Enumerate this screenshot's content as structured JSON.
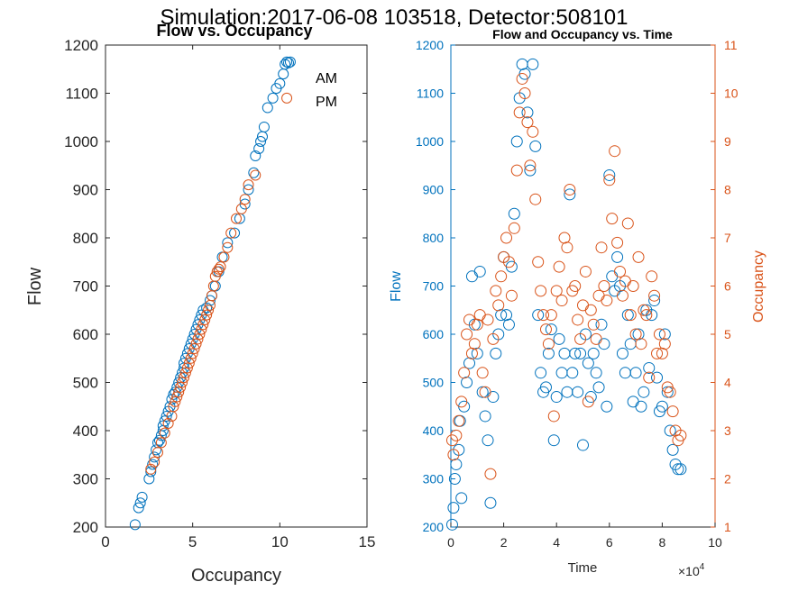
{
  "figure_title": "Simulation:2017-06-08 103518, Detector:508101",
  "colors": {
    "blue": "#0072BD",
    "orange": "#D95319",
    "axis": "#262626"
  },
  "chart_data": [
    {
      "type": "scatter",
      "title": "Flow vs. Occupancy",
      "xlabel": "Occupancy",
      "ylabel": "Flow",
      "xlim": [
        0,
        15
      ],
      "ylim": [
        200,
        1200
      ],
      "xticks": [
        0,
        5,
        10,
        15
      ],
      "yticks": [
        200,
        300,
        400,
        500,
        600,
        700,
        800,
        900,
        1000,
        1100,
        1200
      ],
      "legend": {
        "placement": "top-right",
        "entries": [
          "AM",
          "PM"
        ]
      },
      "grid": false,
      "series": [
        {
          "name": "AM",
          "color": "#0072BD",
          "x": [
            1.7,
            1.9,
            2.0,
            2.1,
            2.5,
            2.6,
            2.7,
            2.8,
            2.9,
            3.0,
            3.1,
            3.2,
            3.3,
            3.3,
            3.4,
            3.5,
            3.6,
            3.7,
            3.8,
            3.9,
            4.0,
            4.1,
            4.2,
            4.3,
            4.4,
            4.5,
            4.5,
            4.6,
            4.7,
            4.8,
            4.9,
            5.0,
            5.1,
            5.2,
            5.3,
            5.4,
            5.5,
            5.6,
            5.8,
            6.0,
            6.1,
            6.3,
            6.5,
            6.7,
            7.0,
            7.4,
            7.7,
            8.0,
            8.2,
            8.5,
            8.6,
            8.8,
            8.9,
            9.0,
            9.1,
            9.3,
            9.6,
            9.8,
            10.0,
            10.2,
            10.3,
            10.4,
            10.5,
            10.6
          ],
          "y": [
            205,
            240,
            250,
            262,
            300,
            315,
            330,
            345,
            360,
            375,
            380,
            390,
            400,
            410,
            420,
            430,
            440,
            450,
            465,
            475,
            480,
            490,
            500,
            510,
            520,
            530,
            540,
            550,
            560,
            570,
            580,
            590,
            600,
            610,
            620,
            630,
            640,
            650,
            655,
            670,
            680,
            700,
            730,
            760,
            790,
            810,
            840,
            870,
            900,
            935,
            970,
            985,
            1000,
            1010,
            1030,
            1070,
            1090,
            1110,
            1120,
            1140,
            1160,
            1165,
            1163,
            1165
          ]
        },
        {
          "name": "PM",
          "color": "#D95319",
          "x": [
            2.6,
            2.8,
            3.0,
            3.2,
            3.4,
            3.6,
            3.8,
            3.9,
            4.0,
            4.1,
            4.2,
            4.3,
            4.4,
            4.5,
            4.6,
            4.7,
            4.8,
            4.9,
            5.0,
            5.1,
            5.2,
            5.3,
            5.4,
            5.5,
            5.6,
            5.7,
            5.8,
            5.9,
            6.0,
            6.1,
            6.2,
            6.3,
            6.4,
            6.5,
            6.6,
            6.8,
            7.0,
            7.2,
            7.5,
            7.8,
            8.0,
            8.2,
            8.6,
            10.4
          ],
          "y": [
            320,
            335,
            355,
            375,
            395,
            415,
            430,
            450,
            460,
            470,
            480,
            490,
            500,
            510,
            520,
            530,
            540,
            550,
            560,
            570,
            580,
            590,
            600,
            610,
            620,
            630,
            640,
            650,
            660,
            680,
            700,
            720,
            730,
            735,
            740,
            760,
            780,
            810,
            840,
            860,
            880,
            910,
            930,
            1090
          ]
        }
      ]
    },
    {
      "type": "scatter",
      "title": "Flow and Occupancy vs. Time",
      "xlabel": "Time",
      "x_exponent": "×10^4",
      "x_exponent_base": "×10",
      "x_exponent_power": "4",
      "ylabel_left": "Flow",
      "ylabel_right": "Occupancy",
      "xlim": [
        0,
        10
      ],
      "ylim_left": [
        200,
        1200
      ],
      "ylim_right": [
        1,
        11
      ],
      "xticks": [
        0,
        2,
        4,
        6,
        8,
        10
      ],
      "yticks_left": [
        200,
        300,
        400,
        500,
        600,
        700,
        800,
        900,
        1000,
        1100,
        1200
      ],
      "yticks_right": [
        1,
        2,
        3,
        4,
        5,
        6,
        7,
        8,
        9,
        10,
        11
      ],
      "grid": false,
      "series": [
        {
          "name": "Flow",
          "axis": "left",
          "color": "#0072BD",
          "x": [
            0.05,
            0.1,
            0.15,
            0.2,
            0.3,
            0.35,
            0.4,
            0.5,
            0.6,
            0.7,
            0.8,
            0.9,
            1.0,
            1.1,
            1.2,
            1.3,
            1.4,
            1.5,
            1.6,
            1.7,
            1.8,
            1.9,
            2.0,
            2.1,
            2.2,
            2.3,
            2.4,
            2.5,
            2.6,
            2.7,
            2.8,
            2.9,
            3.0,
            3.1,
            3.2,
            3.3,
            3.4,
            3.5,
            3.6,
            3.7,
            3.8,
            3.9,
            4.0,
            4.1,
            4.2,
            4.3,
            4.4,
            4.5,
            4.6,
            4.7,
            4.8,
            4.9,
            5.0,
            5.1,
            5.2,
            5.3,
            5.4,
            5.5,
            5.6,
            5.7,
            5.8,
            5.9,
            6.0,
            6.1,
            6.2,
            6.3,
            6.4,
            6.5,
            6.6,
            6.7,
            6.8,
            6.9,
            7.0,
            7.1,
            7.2,
            7.3,
            7.4,
            7.5,
            7.6,
            7.7,
            7.8,
            7.9,
            8.0,
            8.1,
            8.2,
            8.3,
            8.4,
            8.5,
            8.6,
            8.7
          ],
          "y": [
            205,
            240,
            300,
            330,
            360,
            420,
            260,
            450,
            500,
            540,
            720,
            620,
            560,
            730,
            480,
            430,
            380,
            250,
            470,
            560,
            600,
            640,
            760,
            640,
            620,
            740,
            850,
            1000,
            1090,
            1160,
            1140,
            1060,
            940,
            1160,
            990,
            640,
            520,
            480,
            490,
            560,
            610,
            380,
            470,
            590,
            520,
            560,
            480,
            890,
            520,
            560,
            480,
            560,
            370,
            600,
            540,
            470,
            560,
            520,
            490,
            620,
            580,
            450,
            930,
            720,
            690,
            760,
            700,
            560,
            520,
            640,
            580,
            460,
            520,
            600,
            450,
            480,
            650,
            530,
            640,
            670,
            510,
            440,
            450,
            600,
            480,
            400,
            360,
            330,
            320,
            320
          ]
        },
        {
          "name": "Occupancy",
          "axis": "right",
          "color": "#D95319",
          "x": [
            0.05,
            0.1,
            0.2,
            0.3,
            0.4,
            0.5,
            0.6,
            0.7,
            0.8,
            0.9,
            1.0,
            1.1,
            1.2,
            1.3,
            1.4,
            1.5,
            1.6,
            1.7,
            1.8,
            1.9,
            2.0,
            2.1,
            2.2,
            2.3,
            2.4,
            2.5,
            2.6,
            2.7,
            2.8,
            2.9,
            3.0,
            3.1,
            3.2,
            3.3,
            3.4,
            3.5,
            3.6,
            3.7,
            3.8,
            3.9,
            4.0,
            4.1,
            4.2,
            4.3,
            4.4,
            4.5,
            4.6,
            4.7,
            4.8,
            4.9,
            5.0,
            5.1,
            5.2,
            5.3,
            5.4,
            5.5,
            5.6,
            5.7,
            5.8,
            5.9,
            6.0,
            6.1,
            6.2,
            6.3,
            6.4,
            6.5,
            6.6,
            6.7,
            6.8,
            6.9,
            7.0,
            7.1,
            7.2,
            7.3,
            7.4,
            7.5,
            7.6,
            7.7,
            7.8,
            7.9,
            8.0,
            8.1,
            8.2,
            8.3,
            8.4,
            8.5,
            8.6,
            8.7
          ],
          "y": [
            2.8,
            2.5,
            2.9,
            3.2,
            3.6,
            4.2,
            5.0,
            5.3,
            4.6,
            4.8,
            5.2,
            5.4,
            4.2,
            3.8,
            5.3,
            2.1,
            4.9,
            5.9,
            5.6,
            6.2,
            6.6,
            7.0,
            6.5,
            5.8,
            7.2,
            8.4,
            9.6,
            10.3,
            10.0,
            9.4,
            8.5,
            9.2,
            7.8,
            6.5,
            5.9,
            5.4,
            5.1,
            4.8,
            5.4,
            3.3,
            5.9,
            6.4,
            5.7,
            7.0,
            6.8,
            8.0,
            5.9,
            6.0,
            5.3,
            4.9,
            5.6,
            6.3,
            3.6,
            5.5,
            5.2,
            4.9,
            5.8,
            6.8,
            6.0,
            5.7,
            8.2,
            7.4,
            8.8,
            6.9,
            6.3,
            5.8,
            6.1,
            7.3,
            5.4,
            6.0,
            5.0,
            6.6,
            4.8,
            5.5,
            5.4,
            4.1,
            6.2,
            5.8,
            4.6,
            5.0,
            4.6,
            4.8,
            3.9,
            3.8,
            3.4,
            3.0,
            2.8,
            2.9
          ]
        }
      ]
    }
  ]
}
